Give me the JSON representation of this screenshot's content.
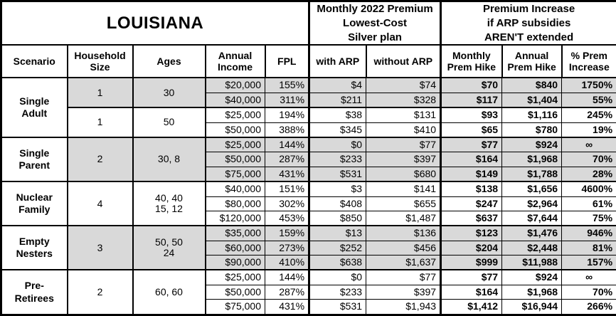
{
  "title": "LOUISIANA",
  "header_groups": {
    "premium": "Monthly 2022 Premium\nLowest-Cost\nSilver plan",
    "increase": "Premium Increase\nif ARP subsidies\nAREN'T extended"
  },
  "columns": [
    "Scenario",
    "Household\nSize",
    "Ages",
    "Annual\nIncome",
    "FPL",
    "with ARP",
    "without ARP",
    "Monthly\nPrem Hike",
    "Annual\nPrem Hike",
    "% Prem\nIncrease"
  ],
  "colors": {
    "row_shade": "#d9d9d9",
    "border": "#000000",
    "text": "#000000",
    "background": "#ffffff"
  },
  "groups": [
    {
      "scenario": "Single\nAdult",
      "subgroups": [
        {
          "household_size": "1",
          "ages": "30",
          "shaded": true,
          "rows": [
            {
              "income": "$20,000",
              "fpl": "155%",
              "with_arp": "$4",
              "without_arp": "$74",
              "monthly_hike": "$70",
              "annual_hike": "$840",
              "pct_increase": "1750%"
            },
            {
              "income": "$40,000",
              "fpl": "311%",
              "with_arp": "$211",
              "without_arp": "$328",
              "monthly_hike": "$117",
              "annual_hike": "$1,404",
              "pct_increase": "55%"
            }
          ]
        },
        {
          "household_size": "1",
          "ages": "50",
          "shaded": false,
          "rows": [
            {
              "income": "$25,000",
              "fpl": "194%",
              "with_arp": "$38",
              "without_arp": "$131",
              "monthly_hike": "$93",
              "annual_hike": "$1,116",
              "pct_increase": "245%"
            },
            {
              "income": "$50,000",
              "fpl": "388%",
              "with_arp": "$345",
              "without_arp": "$410",
              "monthly_hike": "$65",
              "annual_hike": "$780",
              "pct_increase": "19%"
            }
          ]
        }
      ]
    },
    {
      "scenario": "Single\nParent",
      "subgroups": [
        {
          "household_size": "2",
          "ages": "30, 8",
          "shaded": true,
          "rows": [
            {
              "income": "$25,000",
              "fpl": "144%",
              "with_arp": "$0",
              "without_arp": "$77",
              "monthly_hike": "$77",
              "annual_hike": "$924",
              "pct_increase": "∞"
            },
            {
              "income": "$50,000",
              "fpl": "287%",
              "with_arp": "$233",
              "without_arp": "$397",
              "monthly_hike": "$164",
              "annual_hike": "$1,968",
              "pct_increase": "70%"
            },
            {
              "income": "$75,000",
              "fpl": "431%",
              "with_arp": "$531",
              "without_arp": "$680",
              "monthly_hike": "$149",
              "annual_hike": "$1,788",
              "pct_increase": "28%"
            }
          ]
        }
      ]
    },
    {
      "scenario": "Nuclear\nFamily",
      "subgroups": [
        {
          "household_size": "4",
          "ages": "40, 40\n15, 12",
          "shaded": false,
          "rows": [
            {
              "income": "$40,000",
              "fpl": "151%",
              "with_arp": "$3",
              "without_arp": "$141",
              "monthly_hike": "$138",
              "annual_hike": "$1,656",
              "pct_increase": "4600%"
            },
            {
              "income": "$80,000",
              "fpl": "302%",
              "with_arp": "$408",
              "without_arp": "$655",
              "monthly_hike": "$247",
              "annual_hike": "$2,964",
              "pct_increase": "61%"
            },
            {
              "income": "$120,000",
              "fpl": "453%",
              "with_arp": "$850",
              "without_arp": "$1,487",
              "monthly_hike": "$637",
              "annual_hike": "$7,644",
              "pct_increase": "75%"
            }
          ]
        }
      ]
    },
    {
      "scenario": "Empty\nNesters",
      "subgroups": [
        {
          "household_size": "3",
          "ages": "50, 50\n24",
          "shaded": true,
          "rows": [
            {
              "income": "$35,000",
              "fpl": "159%",
              "with_arp": "$13",
              "without_arp": "$136",
              "monthly_hike": "$123",
              "annual_hike": "$1,476",
              "pct_increase": "946%"
            },
            {
              "income": "$60,000",
              "fpl": "273%",
              "with_arp": "$252",
              "without_arp": "$456",
              "monthly_hike": "$204",
              "annual_hike": "$2,448",
              "pct_increase": "81%"
            },
            {
              "income": "$90,000",
              "fpl": "410%",
              "with_arp": "$638",
              "without_arp": "$1,637",
              "monthly_hike": "$999",
              "annual_hike": "$11,988",
              "pct_increase": "157%"
            }
          ]
        }
      ]
    },
    {
      "scenario": "Pre-\nRetirees",
      "subgroups": [
        {
          "household_size": "2",
          "ages": "60, 60",
          "shaded": false,
          "rows": [
            {
              "income": "$25,000",
              "fpl": "144%",
              "with_arp": "$0",
              "without_arp": "$77",
              "monthly_hike": "$77",
              "annual_hike": "$924",
              "pct_increase": "∞"
            },
            {
              "income": "$50,000",
              "fpl": "287%",
              "with_arp": "$233",
              "without_arp": "$397",
              "monthly_hike": "$164",
              "annual_hike": "$1,968",
              "pct_increase": "70%"
            },
            {
              "income": "$75,000",
              "fpl": "431%",
              "with_arp": "$531",
              "without_arp": "$1,943",
              "monthly_hike": "$1,412",
              "annual_hike": "$16,944",
              "pct_increase": "266%"
            }
          ]
        }
      ]
    }
  ]
}
